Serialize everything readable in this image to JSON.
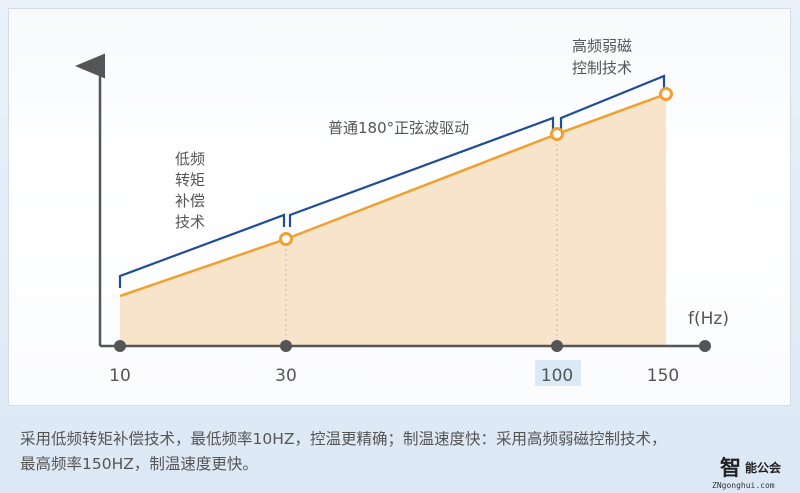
{
  "chart_data": {
    "type": "area",
    "xlabel": "f(Hz)",
    "x_ticks": [
      "10",
      "30",
      "100",
      "150"
    ],
    "x": [
      10,
      30,
      100,
      150
    ],
    "highlighted_tick": "100",
    "line_color": "#f0a030",
    "fill_color": "#f8e3cb",
    "bracket_color": "#1f4e96",
    "grid": false,
    "segments": [
      {
        "range": [
          10,
          30
        ],
        "label": [
          "低频",
          "转矩",
          "补偿",
          "技术"
        ]
      },
      {
        "range": [
          30,
          100
        ],
        "label": [
          "普通180°正弦波驱动"
        ]
      },
      {
        "range": [
          100,
          150
        ],
        "label": [
          "高频弱磁",
          "控制技术"
        ]
      }
    ]
  },
  "caption": {
    "line1": "采用低频转矩补偿技术，最低频率10HZ，控温更精确；制温速度快：采用高频弱磁控制技术，",
    "line2": "最高频率150HZ，制温速度更快。"
  },
  "watermark": {
    "main": "智",
    "side": "能公会",
    "url": "ZNgonghui.com"
  }
}
